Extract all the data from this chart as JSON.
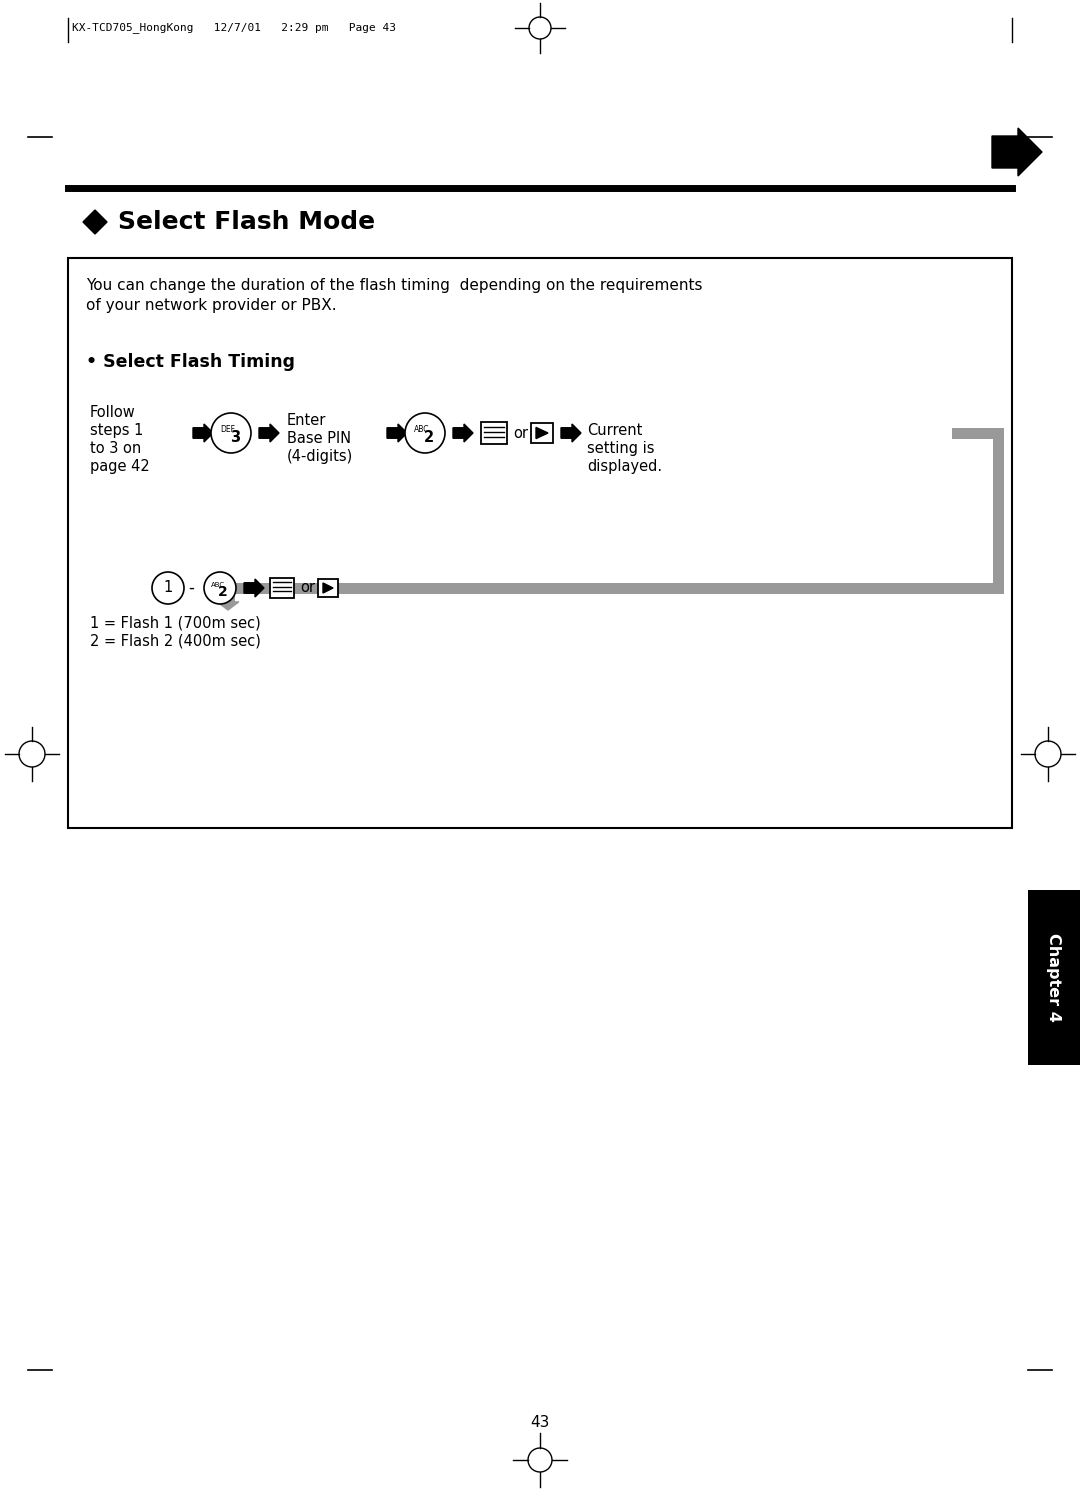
{
  "bg_color": "#ffffff",
  "page_header": "KX-TCD705_HongKong   12/7/01   2:29 pm   Page 43",
  "title": "Select Flash Mode",
  "desc1": "You can change the duration of the flash timing  depending on the requirements",
  "desc2": "of your network provider or PBX.",
  "subsection": "• Select Flash Timing",
  "follow_lines": [
    "Follow",
    "steps 1",
    "to 3 on",
    "page 42"
  ],
  "enter_lines": [
    "Enter",
    "Base PIN",
    "(4-digits)"
  ],
  "current_lines": [
    "Current",
    "setting is",
    "displayed."
  ],
  "flash1": "1 = Flash 1 (700m sec)",
  "flash2": "2 = Flash 2 (400m sec)",
  "page_num": "43",
  "chapter": "Chapter 4",
  "gray_color": "#999999",
  "black": "#000000",
  "white": "#ffffff"
}
